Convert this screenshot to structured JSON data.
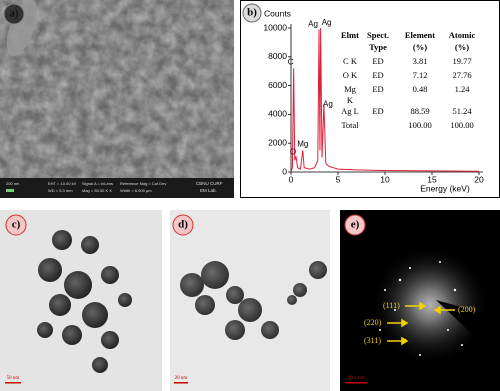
{
  "panels": {
    "a": {
      "label": "a)",
      "scale_bar": "200 nm",
      "info": [
        "EHT = 10.00 kV",
        "WD = 5.3 mm",
        "Signal A = InLens",
        "Mag = 50.00 K X",
        "Reference Mag = Cut Dev",
        "Width = 6.000 µm"
      ],
      "lab": [
        "CBNU CURF",
        "EM Lab."
      ]
    },
    "b": {
      "label": "b)",
      "chart_data": {
        "type": "line",
        "y_label": "Counts",
        "x_label": "Energy (keV)",
        "color": "#e0203a",
        "x": [
          0,
          0.15,
          0.28,
          0.4,
          0.53,
          0.7,
          1.0,
          1.25,
          1.4,
          2.0,
          2.5,
          2.85,
          2.98,
          3.08,
          3.15,
          3.3,
          3.5,
          3.7,
          4.0,
          5,
          7,
          10,
          15,
          20
        ],
        "values": [
          0,
          300,
          7200,
          800,
          1100,
          300,
          200,
          1500,
          300,
          200,
          300,
          800,
          9900,
          1500,
          10000,
          1000,
          4700,
          600,
          400,
          200,
          150,
          100,
          80,
          50
        ],
        "xlim": [
          0,
          20
        ],
        "xticks": [
          0,
          5,
          10,
          15,
          20
        ],
        "ylim": [
          0,
          10000
        ],
        "yticks": [
          0,
          2000,
          4000,
          6000,
          8000,
          10000
        ],
        "peak_labels": [
          {
            "text": "C",
            "x": 0.28,
            "y": 7200
          },
          {
            "text": "O",
            "x": 0.53,
            "y": 1100
          },
          {
            "text": "Mg",
            "x": 1.25,
            "y": 1500
          },
          {
            "text": "Ag",
            "x": 2.98,
            "y": 9900
          },
          {
            "text": "Ag",
            "x": 3.15,
            "y": 10000
          },
          {
            "text": "Ag",
            "x": 3.5,
            "y": 4700
          }
        ]
      },
      "table": {
        "header": [
          [
            "Elmt"
          ],
          [
            "Spect.",
            "Type"
          ],
          [
            "Element",
            "(%)"
          ],
          [
            "Atomic",
            "(%)"
          ]
        ],
        "rows": [
          {
            "elmt": [
              "C K"
            ],
            "type": "ED",
            "element": "3.81",
            "atomic": "19.77"
          },
          {
            "elmt": [
              "O K"
            ],
            "type": "ED",
            "element": "7.12",
            "atomic": "27.76"
          },
          {
            "elmt": [
              "Mg",
              "K"
            ],
            "type": "ED",
            "element": "0.48",
            "atomic": "1.24"
          },
          {
            "elmt": [
              "Ag L"
            ],
            "type": "ED",
            "element": "88.59",
            "atomic": "51.24"
          }
        ],
        "total": {
          "elmt": "Total",
          "element": "100.00",
          "atomic": "100.00"
        }
      }
    },
    "c": {
      "label": "c)",
      "scale_bar": "50 nm"
    },
    "d": {
      "label": "d)",
      "scale_bar": "20 nm"
    },
    "e": {
      "label": "e)",
      "scale_bar": "10 1/nm",
      "rings": [
        "(111)",
        "(200)",
        "(220)",
        "(311)"
      ]
    }
  }
}
